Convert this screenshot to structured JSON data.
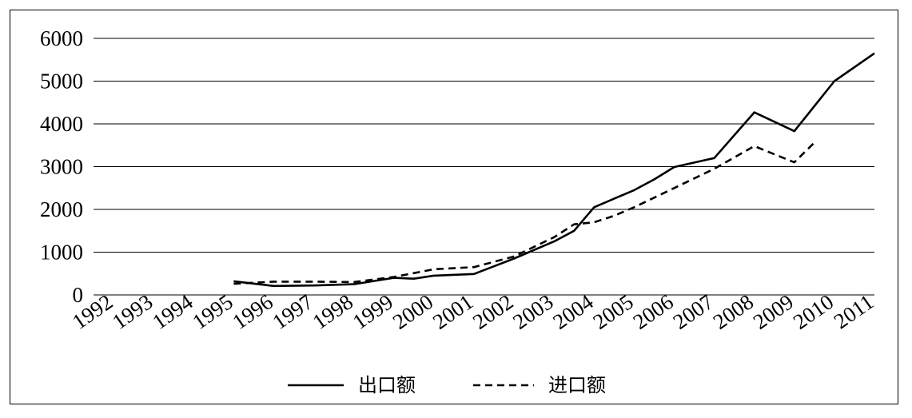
{
  "chart_data": {
    "type": "line",
    "categories": [
      "1992",
      "1993",
      "1994",
      "1995",
      "1996",
      "1997",
      "1998",
      "1999",
      "2000",
      "2001",
      "2002",
      "2003",
      "2004",
      "2005",
      "2006",
      "2007",
      "2008",
      "2009",
      "2010",
      "2011"
    ],
    "x": [
      1995.5,
      1996,
      1996.5,
      1997,
      1997.5,
      1998,
      1998.5,
      1999,
      1999.5,
      2000,
      2000.5,
      2001,
      2001.5,
      2002,
      2002.5,
      2003,
      2003.5,
      2004,
      2004.5,
      2005,
      2005.5,
      2006,
      2006.5,
      2007,
      2007.5,
      2008,
      2008.5,
      2009,
      2009.5,
      2010,
      2010.5,
      2011,
      2011.5
    ],
    "series": [
      {
        "name": "出口额",
        "style": "solid",
        "points": [
          [
            1995.5,
            320
          ],
          [
            1996.5,
            210
          ],
          [
            1997.5,
            220
          ],
          [
            1998.5,
            250
          ],
          [
            1999.5,
            400
          ],
          [
            2000,
            380
          ],
          [
            2000.5,
            450
          ],
          [
            2001.5,
            490
          ],
          [
            2002.5,
            850
          ],
          [
            2003.5,
            1250
          ],
          [
            2004,
            1500
          ],
          [
            2004.5,
            2050
          ],
          [
            2005,
            2250
          ],
          [
            2005.5,
            2450
          ],
          [
            2006,
            2700
          ],
          [
            2006.5,
            2990
          ],
          [
            2007.5,
            3200
          ],
          [
            2008.5,
            4270
          ],
          [
            2009.5,
            3830
          ],
          [
            2010.5,
            5000
          ],
          [
            2011.5,
            5650
          ]
        ]
      },
      {
        "name": "进口额",
        "style": "dashed",
        "points": [
          [
            1995.5,
            260
          ],
          [
            1996.5,
            310
          ],
          [
            1997.5,
            310
          ],
          [
            1998.5,
            300
          ],
          [
            1999.5,
            420
          ],
          [
            2000.5,
            600
          ],
          [
            2001.5,
            650
          ],
          [
            2002.5,
            900
          ],
          [
            2003.5,
            1350
          ],
          [
            2004,
            1650
          ],
          [
            2004.5,
            1700
          ],
          [
            2005,
            1850
          ],
          [
            2005.5,
            2050
          ],
          [
            2006.5,
            2500
          ],
          [
            2007.5,
            2950
          ],
          [
            2008.5,
            3480
          ],
          [
            2009.5,
            3100
          ],
          [
            2010,
            3560
          ]
        ]
      }
    ],
    "y_ticks": [
      "0",
      "1000",
      "2000",
      "3000",
      "4000",
      "5000",
      "6000"
    ],
    "ylim": [
      0,
      6000
    ],
    "grid": true,
    "legend": {
      "position": "bottom",
      "items": [
        "出口额",
        "进口额"
      ]
    }
  },
  "colors": {
    "line": "#000000",
    "grid": "#000000",
    "background": "#ffffff"
  }
}
